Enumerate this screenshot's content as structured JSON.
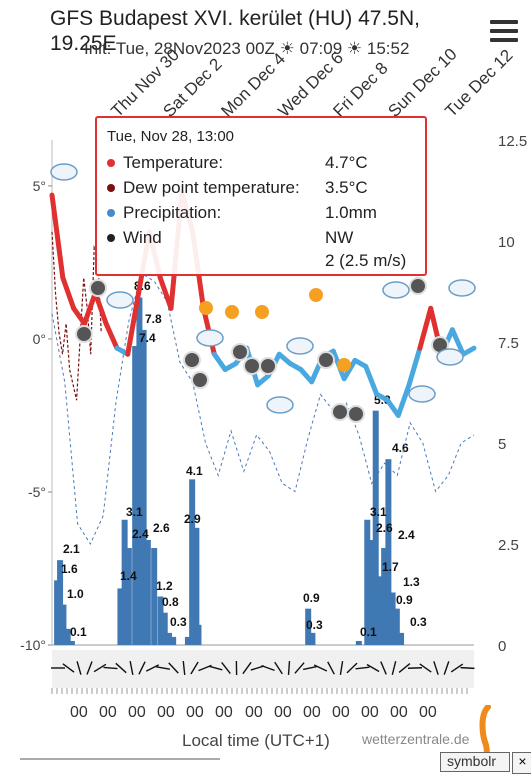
{
  "header": {
    "title": "GFS Budapest XVI. kerület (HU) 47.5N,",
    "title_line2": "19.25E",
    "init": "Init: Tue, 28Nov2023 00Z",
    "sunrise": "07:09",
    "sunset": "15:52",
    "sunrise_icon": "sunrise-icon",
    "sunset_icon": "sunset-icon",
    "menu_icon": "hamburger-menu-icon"
  },
  "tooltip": {
    "header": "Tue, Nov 28, 13:00",
    "rows": [
      {
        "label": "Temperature:",
        "value": "4.7°C",
        "color": "#e03030"
      },
      {
        "label": "Dew point temperature:",
        "value": "3.5°C",
        "color": "#7a1010"
      },
      {
        "label": "Precipitation:",
        "value": "1.0mm",
        "color": "#4a8ac8"
      },
      {
        "label": "Wind",
        "value": "NW",
        "value2": "2 (2.5 m/s)",
        "color": "#222222"
      }
    ]
  },
  "chart_data": {
    "type": "line",
    "date_labels": [
      "Thu Nov 30",
      "Sat Dec 2",
      "Mon Dec 4",
      "Wed Dec 6",
      "Fri Dec 8",
      "Sun Dec 10",
      "Tue Dec 12"
    ],
    "y_left_ticks": [
      "5°",
      "0°",
      "-5°",
      "-10°"
    ],
    "y_left_range": [
      -10,
      6.5
    ],
    "y_right_ticks": [
      "12.5",
      "10",
      "7.5",
      "5",
      "2.5",
      "0"
    ],
    "y_right_range": [
      0,
      12.5
    ],
    "hour_labels": [
      "00",
      "00",
      "00",
      "00",
      "00",
      "00",
      "00",
      "00",
      "00",
      "00",
      "00",
      "00",
      "00"
    ],
    "xlabel": "Local time (UTC+1)",
    "credit": "wetterzentrale.de",
    "colors": {
      "temperature": "#e03030",
      "temperature_cold": "#4aa8e0",
      "dewpoint": "#7a1010",
      "precip": "#3f78b3",
      "pressure": "#4a7ab8"
    },
    "temperature": [
      4.7,
      2.0,
      1.0,
      0.5,
      1.5,
      0.5,
      -0.3,
      -0.5,
      1.5,
      3.5,
      2.0,
      1.0,
      4.8,
      3.5,
      1.0,
      -0.5,
      -1.0,
      -0.8,
      -0.3,
      -1.5,
      -1.2,
      -0.5,
      -0.8,
      -1.0,
      -1.4,
      -0.6,
      -0.4,
      -1.3,
      -0.7,
      -0.9,
      -1.8,
      -2.0,
      -2.5,
      -1.5,
      -0.3,
      1.0,
      -0.5,
      0.3,
      -0.5,
      -0.3
    ],
    "dewpoint": [
      3.5,
      1.5,
      0.2,
      -0.5,
      0.5,
      -1.0,
      -1.5,
      -2.0,
      0.0,
      2.0,
      1.0,
      -0.5,
      3.0,
      2.8,
      0.2
    ],
    "pressure_dashed": [
      8.2,
      6.5,
      3.0,
      2.5,
      3.2,
      6.0,
      8.0,
      9.2,
      9.0,
      8.5,
      7.0,
      6.5,
      5.0,
      4.2,
      5.3,
      4.3,
      5.2,
      4.8,
      4.0,
      3.8,
      5.1,
      6.2,
      5.8,
      6.0,
      5.2,
      4.0,
      4.5,
      4.2,
      5.5,
      5.0,
      3.8,
      4.2,
      5.0,
      5.2
    ],
    "precip_labels": [
      {
        "x": 0.019,
        "value": 2.1
      },
      {
        "x": 0.014,
        "value": 1.6
      },
      {
        "x": 0.039,
        "value": 1.0
      },
      {
        "x": 0.04,
        "value": 0.1
      },
      {
        "x": 0.156,
        "value": 1.4
      },
      {
        "x": 0.174,
        "value": 3.1
      },
      {
        "x": 0.18,
        "value": 2.4
      },
      {
        "x": 0.215,
        "value": 2.6
      },
      {
        "x": 0.228,
        "value": 7.8
      },
      {
        "x": 0.223,
        "value": 7.4
      },
      {
        "x": 0.225,
        "value": 8.6
      },
      {
        "x": 0.27,
        "value": 1.2
      },
      {
        "x": 0.28,
        "value": 0.8
      },
      {
        "x": 0.3,
        "value": 0.3
      },
      {
        "x": 0.365,
        "value": 4.1
      },
      {
        "x": 0.36,
        "value": 2.9
      },
      {
        "x": 0.62,
        "value": 0.9
      },
      {
        "x": 0.62,
        "value": 0.3
      },
      {
        "x": 0.725,
        "value": 0.1
      },
      {
        "x": 0.773,
        "value": 5.8
      },
      {
        "x": 0.755,
        "value": 3.1
      },
      {
        "x": 0.768,
        "value": 2.6
      },
      {
        "x": 0.81,
        "value": 4.6
      },
      {
        "x": 0.795,
        "value": 2.4
      },
      {
        "x": 0.785,
        "value": 1.7
      },
      {
        "x": 0.82,
        "value": 1.3
      },
      {
        "x": 0.81,
        "value": 0.9
      },
      {
        "x": 0.83,
        "value": 0.3
      }
    ]
  },
  "footer": {
    "symbol_button": "symbolr",
    "close_button": "×"
  }
}
